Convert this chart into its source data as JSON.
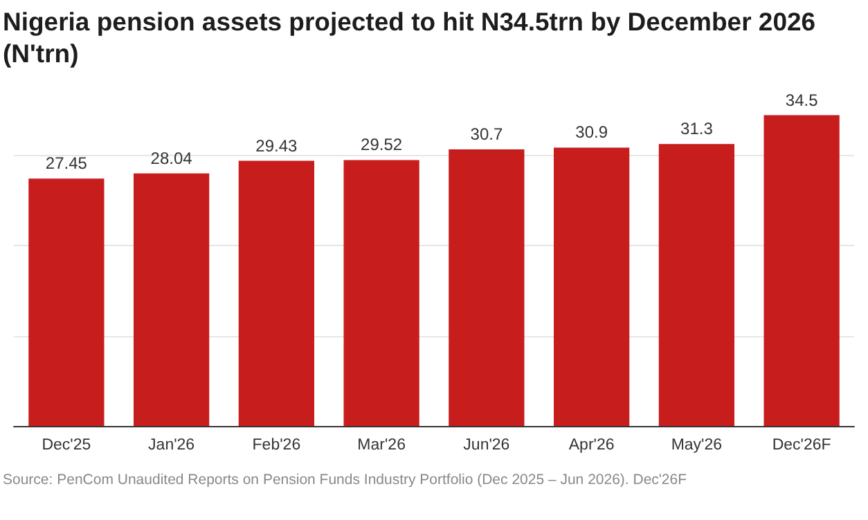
{
  "chart_data": {
    "type": "bar",
    "title": "Nigeria pension assets projected to hit N34.5trn by December 2026 (N'trn)",
    "categories": [
      "Dec'25",
      "Jan'26",
      "Feb'26",
      "Mar'26",
      "Jun'26",
      "Apr'26",
      "May'26",
      "Dec'26F"
    ],
    "values": [
      27.45,
      28.04,
      29.43,
      29.52,
      30.7,
      30.9,
      31.3,
      34.5
    ],
    "color": "#c71e1d",
    "ylim": [
      0,
      35
    ],
    "yticks": [
      {
        "value": 0,
        "label": null
      },
      {
        "value": 10,
        "label": null
      },
      {
        "value": 20,
        "label": null
      },
      {
        "value": 30,
        "label": null
      }
    ],
    "tick_labels": "x",
    "grid": "y",
    "data_labels": true,
    "annotations": [
      "Source: PenCom Unaudited Reports on Pension Funds Industry Portfolio (Dec 2025 – Jun 2026). Dec'26F"
    ]
  }
}
